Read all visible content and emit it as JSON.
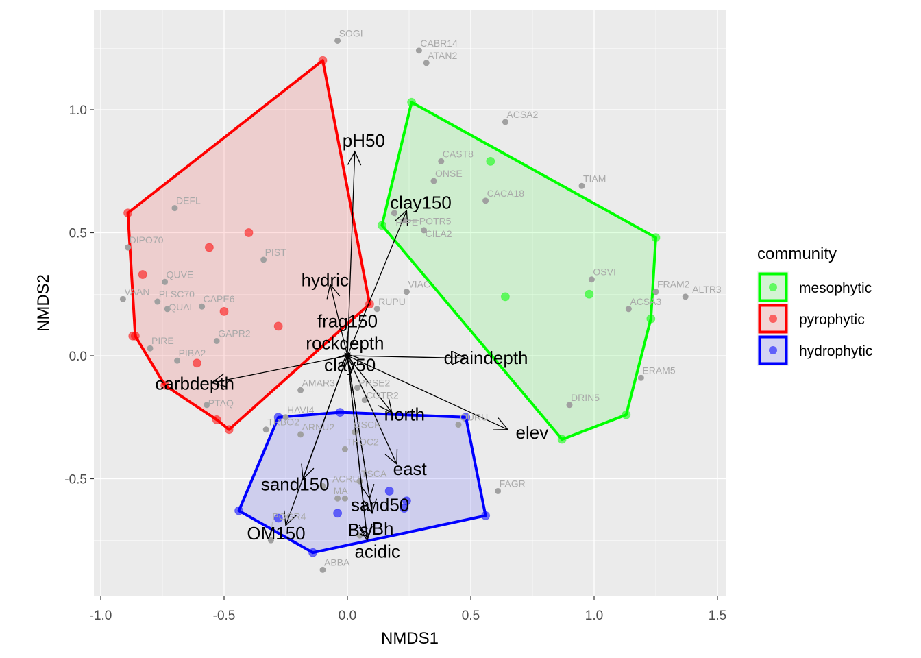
{
  "chart_data": {
    "type": "scatter",
    "xlabel": "NMDS1",
    "ylabel": "NMDS2",
    "xlim": [
      -1.12,
      1.5
    ],
    "ylim": [
      -0.98,
      1.41
    ],
    "xticks": [
      -1.0,
      -0.5,
      0.0,
      0.5,
      1.0,
      1.5
    ],
    "xtick_labels": [
      "-1.0",
      "-0.5",
      "0.0",
      "0.5",
      "1.0",
      "1.5"
    ],
    "yticks": [
      -0.5,
      0.0,
      0.5,
      1.0
    ],
    "ytick_labels": [
      "-0.5",
      "0.0",
      "0.5",
      "1.0"
    ],
    "grid": true,
    "legend": {
      "title": "community",
      "placement": "right",
      "entries": [
        {
          "name": "mesophytic",
          "color": "#00FF00"
        },
        {
          "name": "pyrophytic",
          "color": "#FF0000"
        },
        {
          "name": "hydrophytic",
          "color": "#0000FF"
        }
      ]
    },
    "groups": [
      {
        "name": "mesophytic",
        "color": "#00FF00",
        "hull": [
          [
            0.26,
            1.03
          ],
          [
            1.25,
            0.48
          ],
          [
            1.23,
            0.15
          ],
          [
            1.13,
            -0.24
          ],
          [
            0.87,
            -0.34
          ],
          [
            0.14,
            0.53
          ]
        ],
        "points": [
          [
            0.26,
            1.03
          ],
          [
            1.25,
            0.48
          ],
          [
            1.23,
            0.15
          ],
          [
            1.13,
            -0.24
          ],
          [
            0.87,
            -0.34
          ],
          [
            0.14,
            0.53
          ],
          [
            0.58,
            0.79
          ],
          [
            0.64,
            0.24
          ],
          [
            0.98,
            0.25
          ]
        ]
      },
      {
        "name": "pyrophytic",
        "color": "#FF0000",
        "hull": [
          [
            -0.1,
            1.2
          ],
          [
            0.09,
            0.21
          ],
          [
            -0.48,
            -0.3
          ],
          [
            -0.53,
            -0.26
          ],
          [
            -0.74,
            -0.12
          ],
          [
            -0.86,
            0.08
          ],
          [
            -0.89,
            0.58
          ]
        ],
        "points": [
          [
            -0.1,
            1.2
          ],
          [
            0.09,
            0.21
          ],
          [
            -0.48,
            -0.3
          ],
          [
            -0.53,
            -0.26
          ],
          [
            -0.74,
            -0.12
          ],
          [
            -0.86,
            0.08
          ],
          [
            -0.87,
            0.08
          ],
          [
            -0.89,
            0.58
          ],
          [
            -0.4,
            0.5
          ],
          [
            -0.56,
            0.44
          ],
          [
            -0.83,
            0.33
          ],
          [
            -0.5,
            0.18
          ],
          [
            -0.28,
            0.12
          ],
          [
            -0.61,
            -0.03
          ]
        ]
      },
      {
        "name": "hydrophytic",
        "color": "#0000FF",
        "hull": [
          [
            -0.28,
            -0.25
          ],
          [
            -0.03,
            -0.23
          ],
          [
            0.48,
            -0.25
          ],
          [
            0.56,
            -0.65
          ],
          [
            -0.14,
            -0.8
          ],
          [
            -0.44,
            -0.63
          ]
        ],
        "points": [
          [
            -0.28,
            -0.25
          ],
          [
            -0.03,
            -0.23
          ],
          [
            0.48,
            -0.25
          ],
          [
            0.56,
            -0.65
          ],
          [
            -0.14,
            -0.8
          ],
          [
            -0.44,
            -0.63
          ],
          [
            -0.04,
            -0.64
          ],
          [
            -0.28,
            -0.66
          ],
          [
            0.24,
            -0.59
          ],
          [
            0.23,
            -0.62
          ],
          [
            0.17,
            -0.55
          ]
        ]
      }
    ],
    "species": [
      {
        "label": "SOGI",
        "x": -0.04,
        "y": 1.28
      },
      {
        "label": "CABR14",
        "x": 0.29,
        "y": 1.24
      },
      {
        "label": "ATAN2",
        "x": 0.32,
        "y": 1.19
      },
      {
        "label": "ACSA2",
        "x": 0.64,
        "y": 0.95
      },
      {
        "label": "CAST8",
        "x": 0.38,
        "y": 0.79
      },
      {
        "label": "ONSE",
        "x": 0.35,
        "y": 0.71
      },
      {
        "label": "TIAM",
        "x": 0.95,
        "y": 0.69
      },
      {
        "label": "CACA18",
        "x": 0.56,
        "y": 0.63
      },
      {
        "label": "RIPE",
        "x": 0.19,
        "y": 0.58
      },
      {
        "label": "POTR5",
        "x": 0.23,
        "y": 0.55
      },
      {
        "label": "CILA2",
        "x": 0.31,
        "y": 0.51
      },
      {
        "label": "DEFL",
        "x": -0.7,
        "y": 0.6
      },
      {
        "label": "DIPO70",
        "x": -0.89,
        "y": 0.44
      },
      {
        "label": "PIST",
        "x": -0.34,
        "y": 0.39
      },
      {
        "label": "QUVE",
        "x": -0.74,
        "y": 0.3
      },
      {
        "label": "VAAN",
        "x": -0.91,
        "y": 0.23
      },
      {
        "label": "PLSC70",
        "x": -0.77,
        "y": 0.22
      },
      {
        "label": "QUAL",
        "x": -0.73,
        "y": 0.19
      },
      {
        "label": "CAPE6",
        "x": -0.59,
        "y": 0.2
      },
      {
        "label": "GAPR2",
        "x": -0.53,
        "y": 0.06
      },
      {
        "label": "PIRE",
        "x": -0.8,
        "y": 0.03
      },
      {
        "label": "PIBA2",
        "x": -0.69,
        "y": -0.02
      },
      {
        "label": "PTAQ",
        "x": -0.57,
        "y": -0.2
      },
      {
        "label": "VIAC",
        "x": 0.24,
        "y": 0.26
      },
      {
        "label": "RUPU",
        "x": 0.12,
        "y": 0.19
      },
      {
        "label": "OSVI",
        "x": 0.99,
        "y": 0.31
      },
      {
        "label": "FRAM2",
        "x": 1.25,
        "y": 0.26
      },
      {
        "label": "ALTR3",
        "x": 1.37,
        "y": 0.24
      },
      {
        "label": "ACSA3",
        "x": 1.14,
        "y": 0.19
      },
      {
        "label": "ERAM5",
        "x": 1.19,
        "y": -0.09
      },
      {
        "label": "DRIN5",
        "x": 0.9,
        "y": -0.2
      },
      {
        "label": "FAGR",
        "x": 0.61,
        "y": -0.55
      },
      {
        "label": "QURU",
        "x": 0.45,
        "y": -0.28
      },
      {
        "label": "AMAR3",
        "x": -0.19,
        "y": -0.14
      },
      {
        "label": "PRSE2",
        "x": 0.04,
        "y": -0.13
      },
      {
        "label": "COTR2",
        "x": 0.07,
        "y": -0.18
      },
      {
        "label": "HAVI4",
        "x": -0.25,
        "y": -0.25
      },
      {
        "label": "TRBO2",
        "x": -0.33,
        "y": -0.3
      },
      {
        "label": "ARNU2",
        "x": -0.19,
        "y": -0.32
      },
      {
        "label": "OSCR",
        "x": 0.03,
        "y": -0.31
      },
      {
        "label": "THOC2",
        "x": -0.01,
        "y": -0.38
      },
      {
        "label": "TSCA",
        "x": 0.05,
        "y": -0.51
      },
      {
        "label": "ACRU",
        "x": -0.1,
        "y": -0.53
      },
      {
        "label": "MA",
        "x": -0.04,
        "y": -0.58
      },
      {
        "label": "",
        "x": -0.01,
        "y": -0.58
      },
      {
        "label": "",
        "x": 0.05,
        "y": -0.73
      },
      {
        "label": "POGR4",
        "x": -0.31,
        "y": -0.75
      },
      {
        "label": "ABBA",
        "x": -0.1,
        "y": -0.87
      }
    ],
    "vectors": [
      {
        "label": "pH50",
        "x": 0.03,
        "y": 0.83
      },
      {
        "label": "clay150",
        "x": 0.24,
        "y": 0.59
      },
      {
        "label": "hydric",
        "x": -0.07,
        "y": 0.29
      },
      {
        "label": "rockdepth",
        "x": -0.01,
        "y": 0.01
      },
      {
        "label": "frag150",
        "x": 0.0,
        "y": 0.01
      },
      {
        "label": "clay50",
        "x": 0.01,
        "y": 0.01
      },
      {
        "label": "draindepth",
        "x": 0.48,
        "y": -0.01
      },
      {
        "label": "carbdepth",
        "x": -0.55,
        "y": -0.11
      },
      {
        "label": "north",
        "x": 0.18,
        "y": -0.23
      },
      {
        "label": "elev",
        "x": 0.65,
        "y": -0.3
      },
      {
        "label": "east",
        "x": 0.2,
        "y": -0.44
      },
      {
        "label": "sand150",
        "x": -0.18,
        "y": -0.5
      },
      {
        "label": "OM150",
        "x": -0.25,
        "y": -0.69
      },
      {
        "label": "sand50",
        "x": 0.09,
        "y": -0.58
      },
      {
        "label": "Bh",
        "x": 0.1,
        "y": -0.64
      },
      {
        "label": "acidic",
        "x": 0.08,
        "y": -0.75
      },
      {
        "label": "Bs",
        "x": 0.08,
        "y": -0.74
      }
    ]
  }
}
